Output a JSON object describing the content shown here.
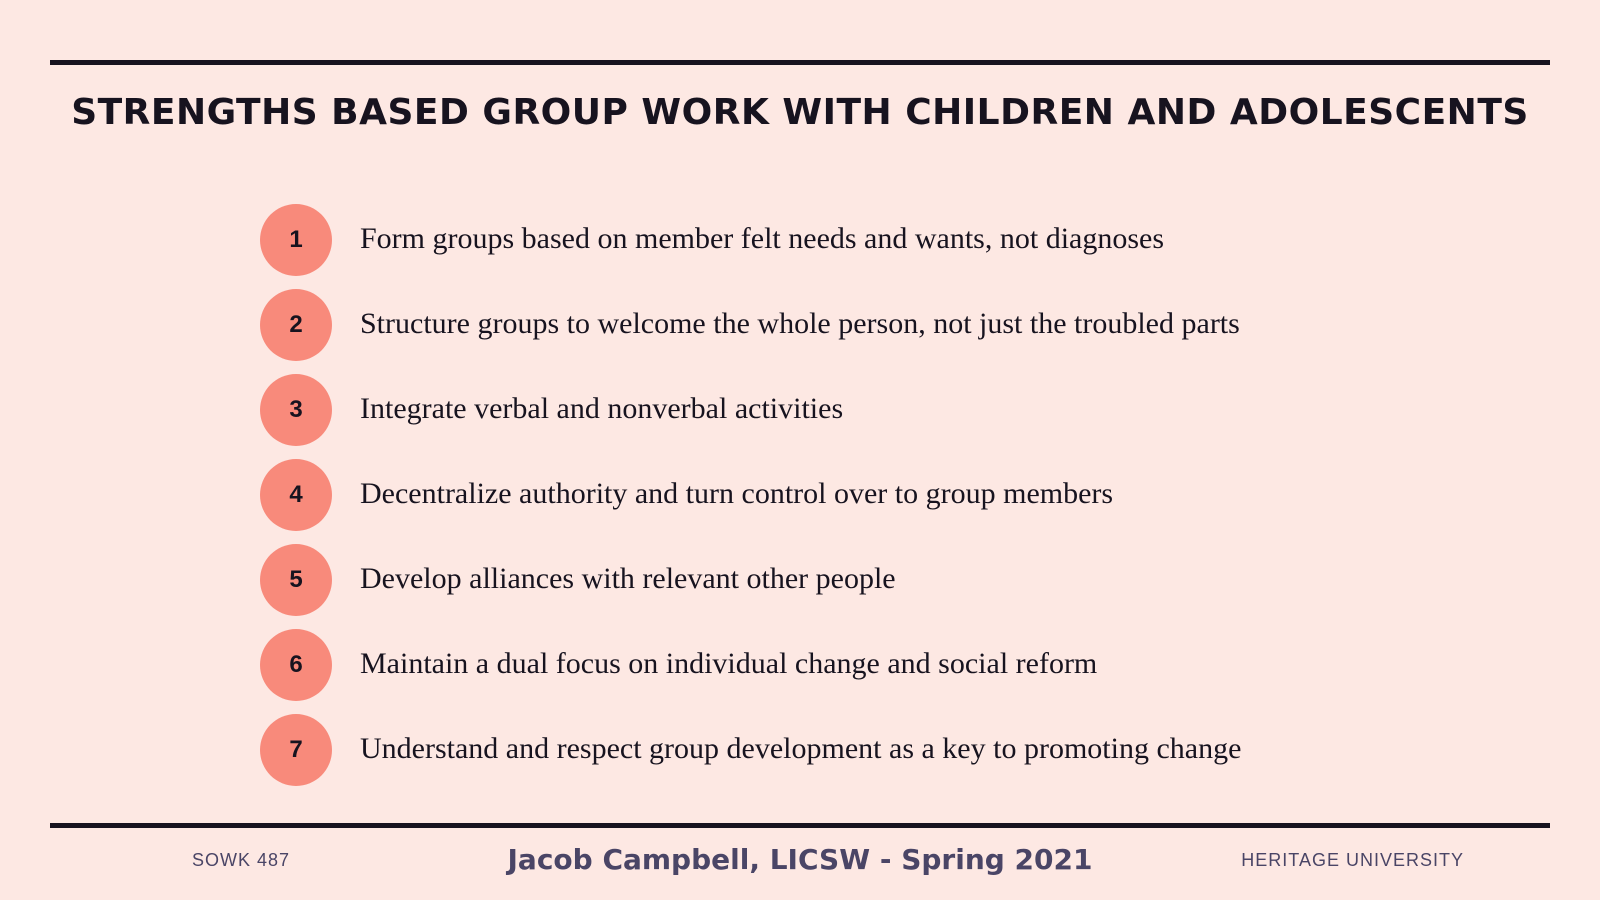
{
  "slide": {
    "title": "STRENGTHS BASED GROUP WORK WITH CHILDREN AND ADOLESCENTS",
    "items": [
      {
        "number": "1",
        "text": "Form groups based on member felt needs and wants, not diagnoses"
      },
      {
        "number": "2",
        "text": "Structure groups to welcome the whole person, not just the troubled parts"
      },
      {
        "number": "3",
        "text": "Integrate verbal and nonverbal activities"
      },
      {
        "number": "4",
        "text": "Decentralize authority and turn control over to group members"
      },
      {
        "number": "5",
        "text": "Develop alliances with relevant other people"
      },
      {
        "number": "6",
        "text": "Maintain a dual focus on individual change and social reform"
      },
      {
        "number": "7",
        "text": "Understand and respect group development as a key to promoting change"
      }
    ]
  },
  "footer": {
    "course": "SOWK 487",
    "presenter": "Jacob Campbell, LICSW - Spring 2021",
    "institution": "HERITAGE UNIVERSITY"
  },
  "colors": {
    "background": "#fde8e3",
    "badge": "#f88a7b",
    "text": "#17131f",
    "footer_text": "#4a4566"
  }
}
